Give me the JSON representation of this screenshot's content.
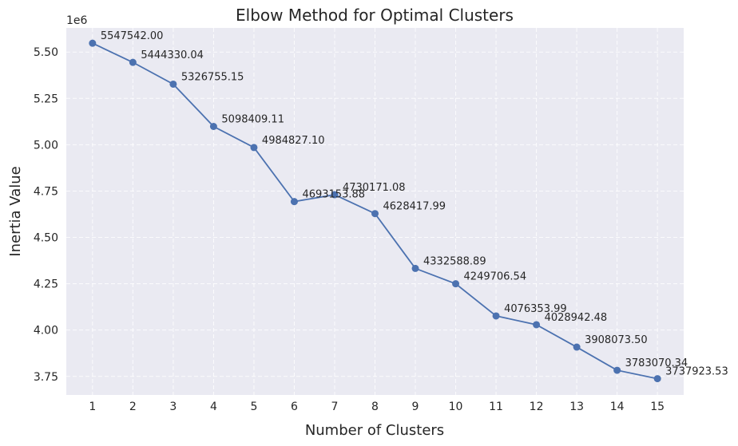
{
  "chart_data": {
    "type": "line",
    "title": "Elbow Method for Optimal Clusters",
    "xlabel": "Number of Clusters",
    "ylabel": "Inertia Value",
    "y_offset_label": "1e6",
    "y_scale": 1000000,
    "x": [
      1,
      2,
      3,
      4,
      5,
      6,
      7,
      8,
      9,
      10,
      11,
      12,
      13,
      14,
      15
    ],
    "x_ticks": [
      "1",
      "2",
      "3",
      "4",
      "5",
      "6",
      "7",
      "8",
      "9",
      "10",
      "11",
      "12",
      "13",
      "14",
      "15"
    ],
    "xlim": [
      0.35,
      15.65
    ],
    "ylim": [
      3650000,
      5630000
    ],
    "y_ticks": [
      3750000,
      4000000,
      4250000,
      4500000,
      4750000,
      5000000,
      5250000,
      5500000
    ],
    "y_tick_labels": [
      "3.75",
      "4.00",
      "4.25",
      "4.50",
      "4.75",
      "5.00",
      "5.25",
      "5.50"
    ],
    "grid": true,
    "series": [
      {
        "color": "#4c72b0",
        "marker": "circle",
        "values": [
          5547542.0,
          5444330.04,
          5326755.15,
          5098409.11,
          4984827.1,
          4693153.88,
          4730171.08,
          4628417.99,
          4332588.89,
          4249706.54,
          4076353.99,
          4028942.48,
          3908073.5,
          3783070.34,
          3737923.53
        ],
        "labels": [
          "5547542.00",
          "5444330.04",
          "5326755.15",
          "5098409.11",
          "4984827.10",
          "4693153.88",
          "4730171.08",
          "4628417.99",
          "4332588.89",
          "4249706.54",
          "4076353.99",
          "4028942.48",
          "3908073.50",
          "3783070.34",
          "3737923.53"
        ]
      }
    ]
  }
}
